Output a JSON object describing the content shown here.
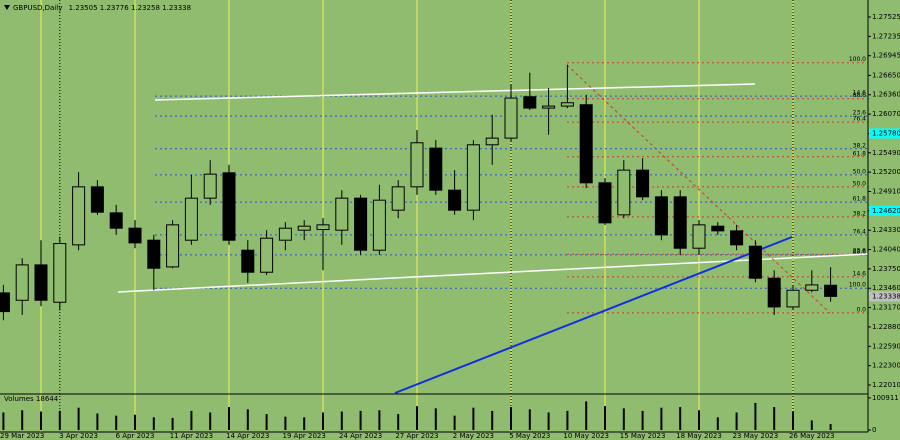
{
  "chart_data": {
    "type": "candlestick",
    "symbol": "GBPUSD,Daily",
    "categories": [
      null,
      "29 Mar 2023",
      null,
      null,
      "3 Apr 2023",
      null,
      null,
      "6 Apr 2023",
      null,
      null,
      "11 Apr 2023",
      null,
      null,
      "14 Apr 2023",
      null,
      null,
      "19 Apr 2023",
      null,
      null,
      "24 Apr 2023",
      null,
      null,
      "27 Apr 2023",
      null,
      null,
      "2 May 2023",
      null,
      null,
      "5 May 2023",
      null,
      null,
      "10 May 2023",
      null,
      null,
      "15 May 2023",
      null,
      null,
      "18 May 2023",
      null,
      null,
      "23 May 2023",
      null,
      null,
      "26 May 2023",
      null
    ],
    "open": [
      1.2339,
      1.2328,
      1.2381,
      1.2325,
      1.2411,
      1.2498,
      1.2459,
      1.2436,
      1.2418,
      1.2378,
      1.2418,
      1.2481,
      1.2519,
      1.2403,
      1.237,
      1.2418,
      1.2433,
      1.2434,
      1.2433,
      1.2481,
      1.2403,
      1.2463,
      1.2498,
      1.2556,
      1.2493,
      1.2463,
      1.2561,
      1.2571,
      1.2633,
      1.2616,
      1.2619,
      1.2621,
      1.2504,
      1.2456,
      1.2523,
      1.2483,
      1.2483,
      1.2406,
      1.2439,
      1.2432,
      1.2409,
      1.2361,
      1.2318,
      1.2343,
      1.23505
    ],
    "high": [
      1.2351,
      1.2391,
      1.2418,
      1.2423,
      1.252,
      1.2508,
      1.2471,
      1.2448,
      1.2426,
      1.2448,
      1.2516,
      1.2538,
      1.2531,
      1.2418,
      1.2433,
      1.2445,
      1.2448,
      1.2451,
      1.2493,
      1.2486,
      1.2501,
      1.2508,
      1.2583,
      1.2568,
      1.2523,
      1.2568,
      1.2606,
      1.2651,
      1.2669,
      1.2646,
      1.2681,
      1.2636,
      1.2511,
      1.2538,
      1.2541,
      1.2493,
      1.2493,
      1.2448,
      1.2445,
      1.2441,
      1.2418,
      1.2373,
      1.2351,
      1.2373,
      1.23776
    ],
    "low": [
      1.2298,
      1.2306,
      1.2319,
      1.2313,
      1.2403,
      1.2456,
      1.2426,
      1.2406,
      1.2343,
      1.2376,
      1.2411,
      1.2471,
      1.2411,
      1.2354,
      1.2366,
      1.2403,
      1.2418,
      1.2373,
      1.2411,
      1.2396,
      1.2396,
      1.2451,
      1.2486,
      1.2486,
      1.2456,
      1.2448,
      1.2531,
      1.2565,
      1.2613,
      1.2576,
      1.2616,
      1.2496,
      1.2441,
      1.2451,
      1.2478,
      1.2418,
      1.2396,
      1.2396,
      1.2426,
      1.2403,
      1.2355,
      1.2306,
      1.2313,
      1.234,
      1.23258
    ],
    "close": [
      1.2311,
      1.2381,
      1.2328,
      1.2413,
      1.2498,
      1.246,
      1.2436,
      1.2414,
      1.2376,
      1.2441,
      1.2481,
      1.2517,
      1.2418,
      1.237,
      1.2421,
      1.2436,
      1.2439,
      1.2441,
      1.2481,
      1.2403,
      1.2478,
      1.2498,
      1.2564,
      1.2493,
      1.2463,
      1.2561,
      1.2571,
      1.2631,
      1.2616,
      1.2619,
      1.2624,
      1.2504,
      1.2444,
      1.2523,
      1.2483,
      1.2426,
      1.2406,
      1.2441,
      1.2432,
      1.2411,
      1.2361,
      1.2318,
      1.2343,
      1.2351,
      1.23338
    ],
    "up_color": "none",
    "down_color": "#000000",
    "ylim": [
      1.2189,
      1.27705
    ],
    "yticks": [
      1.27525,
      1.27235,
      1.26945,
      {
        "value": 1.2665,
        "label": "1.26650"
      },
      {
        "value": 1.2636,
        "label": "1.26360"
      },
      {
        "value": 1.2607,
        "label": "1.26070"
      },
      {
        "value": 1.2578,
        "label": "1.25780",
        "color": "#00ffff"
      },
      {
        "value": 1.2549,
        "label": "1.25490"
      },
      {
        "value": 1.252,
        "label": "1.25200"
      },
      {
        "value": 1.2491,
        "label": "1.24910"
      },
      {
        "value": 1.2462,
        "label": "1.24620",
        "color": "#00ffff"
      },
      {
        "value": 1.2433,
        "label": "1.24330"
      },
      {
        "value": 1.2404,
        "label": "1.24040"
      },
      {
        "value": 1.2375,
        "label": "1.23750"
      },
      {
        "value": 1.2346,
        "label": "1.23460"
      },
      {
        "value": 1.2317,
        "label": "1.23170"
      },
      {
        "value": 1.2288,
        "label": "1.22880"
      },
      {
        "value": 1.2259,
        "label": "1.22590"
      },
      {
        "value": 1.223,
        "label": "1.22300"
      },
      {
        "value": 1.2201,
        "label": "1.22010"
      }
    ],
    "fibonacci": [
      {
        "color": "#2a52d8",
        "levels": [
          {
            "label": "14.6",
            "price": 1.2634
          },
          {
            "label": "23.6",
            "price": 1.2604
          },
          {
            "label": "38.2",
            "price": 1.2555
          },
          {
            "label": "50.0",
            "price": 1.2516
          },
          {
            "label": "61.8",
            "price": 1.2475
          },
          {
            "label": "76.4",
            "price": 1.2426
          },
          {
            "label": "88.6",
            "price": 1.2396
          },
          {
            "label": "100.0",
            "price": 1.2346
          }
        ]
      },
      {
        "color": "#d23a2a",
        "levels": [
          {
            "label": "100.0",
            "price": 1.2684
          },
          {
            "label": "88.6",
            "price": 1.263
          },
          {
            "label": "76.4",
            "price": 1.2595
          },
          {
            "label": "61.8",
            "price": 1.2543
          },
          {
            "label": "50.0",
            "price": 1.2498
          },
          {
            "label": "38.2",
            "price": 1.2453
          },
          {
            "label": "23.6",
            "price": 1.2397
          },
          {
            "label": "14.6",
            "price": 1.2363
          },
          {
            "label": "0.0",
            "price": 1.2309
          }
        ]
      }
    ],
    "volume_label": "Volumes",
    "volumes": [
      55000,
      62000,
      58000,
      60000,
      70000,
      52000,
      45000,
      48000,
      40000,
      38000,
      60000,
      55000,
      72000,
      65000,
      50000,
      42000,
      40000,
      55000,
      58000,
      60000,
      62000,
      50000,
      75000,
      68000,
      45000,
      70000,
      60000,
      72000,
      65000,
      55000,
      60000,
      90000,
      75000,
      68000,
      60000,
      70000,
      72000,
      62000,
      40000,
      55000,
      85000,
      72000,
      58000,
      30000,
      18644
    ],
    "volume_ylim": [
      0,
      110000
    ],
    "volume_yticks": [
      100911,
      0
    ]
  }
}
